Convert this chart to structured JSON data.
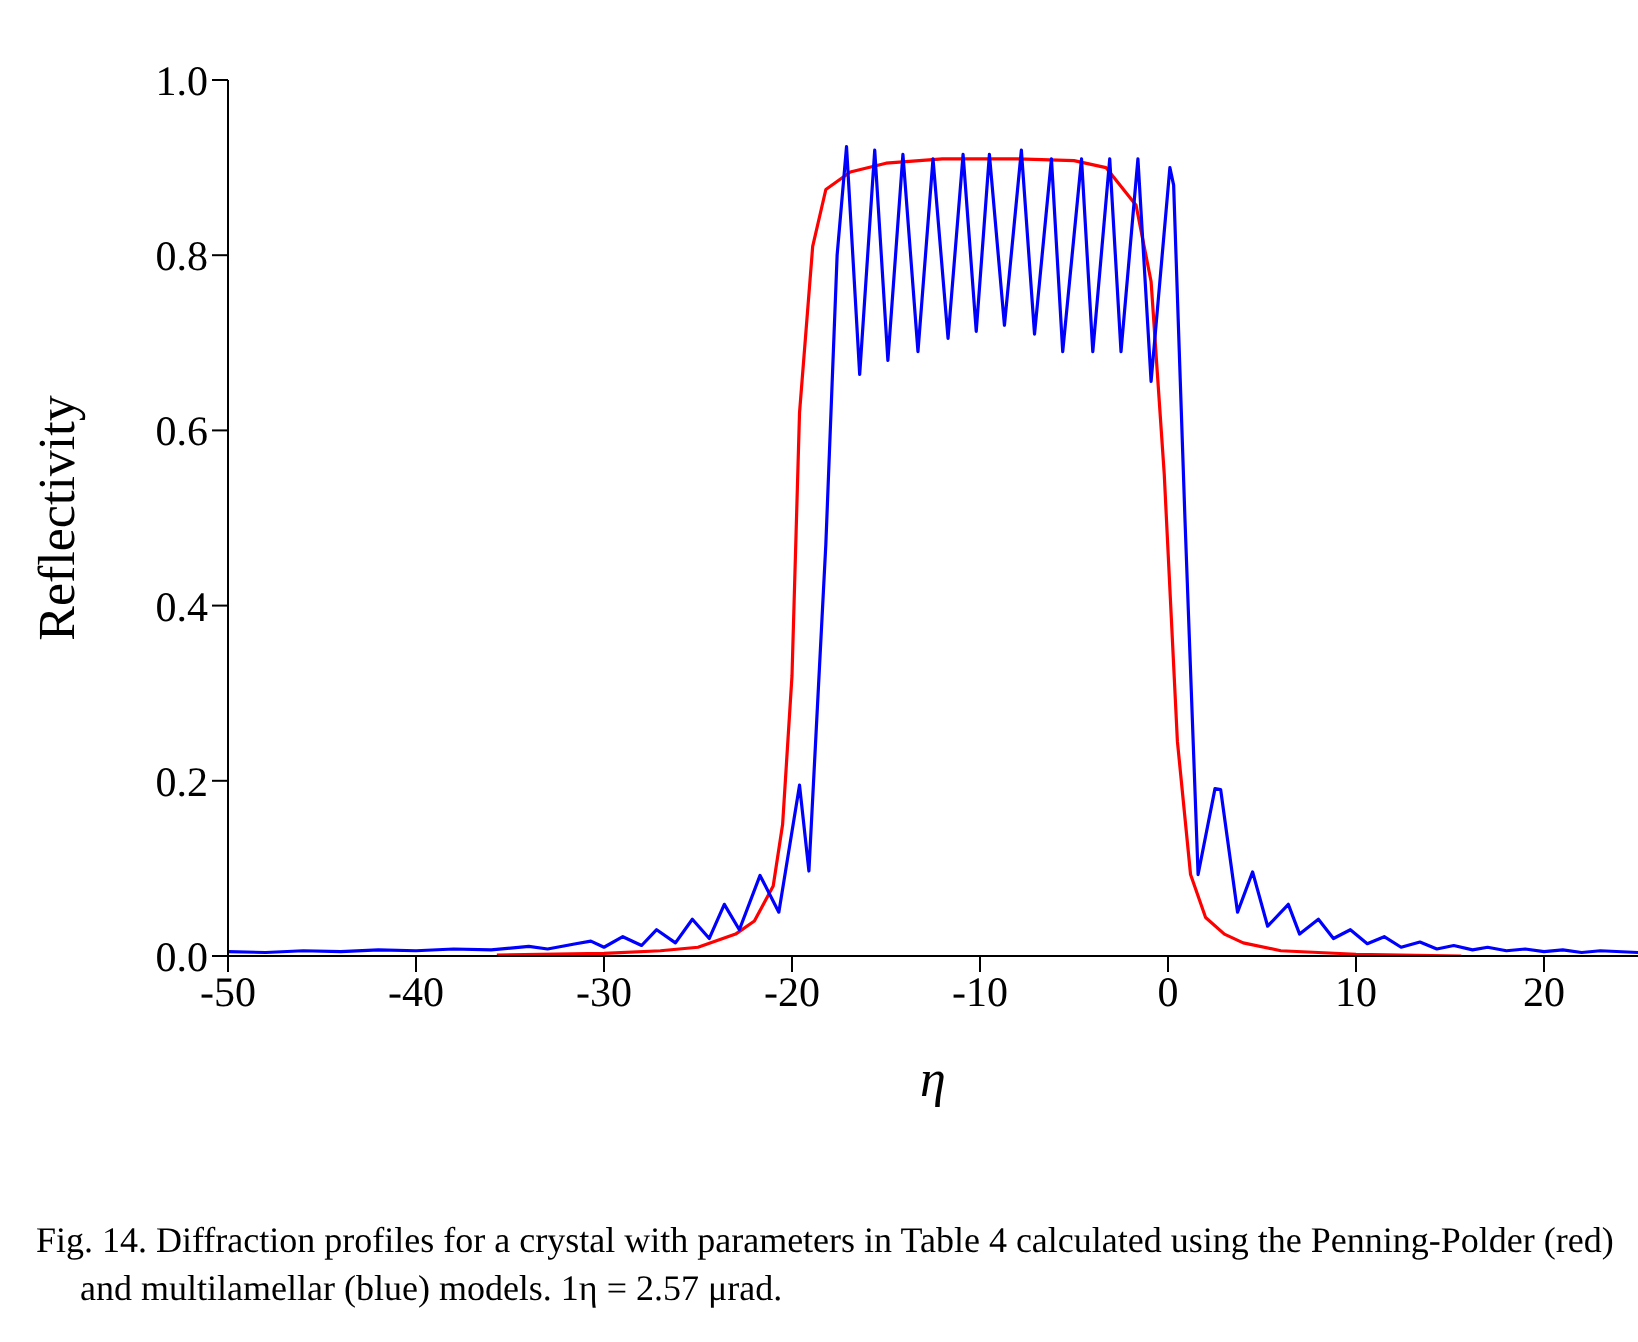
{
  "chart_data": {
    "type": "line",
    "xlabel": "η",
    "ylabel": "Reflectivity",
    "xlim": [
      -50,
      25
    ],
    "xticks": [
      -50,
      -40,
      -30,
      -20,
      -10,
      0,
      10,
      20
    ],
    "ylim": [
      0,
      1
    ],
    "yticks": [
      {
        "value": 0,
        "label": "0.0"
      },
      {
        "value": 0.2,
        "label": "0.2"
      },
      {
        "value": 0.4,
        "label": "0.4"
      },
      {
        "value": 0.6,
        "label": "0.6"
      },
      {
        "value": 0.8,
        "label": "0.8"
      },
      {
        "value": 1,
        "label": "1.0"
      }
    ],
    "grid": false,
    "legend": false,
    "marker": "none",
    "line_style": "solid",
    "annotations": [
      "Fig. 14. Diffraction profiles for a crystal with parameters in Table 4 calculated using the Penning-Polder (red) and multilamellar (blue) models. 1η = 2.57 μrad."
    ],
    "series": [
      {
        "color": "#ff0000",
        "x": [
          -35.7,
          -30,
          -27,
          -25,
          -23,
          -22,
          -21,
          -20.5,
          -20,
          -19.6,
          -18.9,
          -18.2,
          -16.9,
          -15,
          -12,
          -8,
          -5,
          -3.3,
          -1.7,
          -0.9,
          -0.2,
          0.5,
          1.2,
          2,
          3,
          4,
          6,
          10,
          15.6
        ],
        "values": [
          0.001,
          0.003,
          0.006,
          0.01,
          0.025,
          0.04,
          0.08,
          0.15,
          0.32,
          0.62,
          0.81,
          0.875,
          0.895,
          0.905,
          0.91,
          0.91,
          0.908,
          0.9,
          0.857,
          0.77,
          0.55,
          0.245,
          0.093,
          0.044,
          0.025,
          0.015,
          0.006,
          0.002,
          0
        ]
      },
      {
        "color": "#0000ff",
        "x": [
          -50,
          -48,
          -46,
          -44,
          -42,
          -40,
          -38,
          -36,
          -34,
          -33,
          -31.5,
          -30.7,
          -30,
          -29,
          -28,
          -27.2,
          -26.2,
          -25.3,
          -24.4,
          -23.6,
          -22.8,
          -21.7,
          -20.7,
          -19.6,
          -19.1,
          -18.2,
          -17.6,
          -17.1,
          -16.4,
          -15.6,
          -14.9,
          -14.1,
          -13.3,
          -12.5,
          -11.7,
          -10.9,
          -10.2,
          -9.5,
          -8.7,
          -7.8,
          -7.1,
          -6.2,
          -5.6,
          -4.6,
          -4,
          -3.1,
          -2.5,
          -1.6,
          -0.9,
          0.1,
          0.3,
          0.9,
          1.6,
          2.5,
          2.8,
          3.7,
          4.5,
          5.3,
          6.4,
          7,
          8,
          8.8,
          9.7,
          10.6,
          11.5,
          12.4,
          13.4,
          14.3,
          15.2,
          16.2,
          17,
          18,
          19,
          20,
          21,
          22,
          23,
          25
        ],
        "values": [
          0.005,
          0.004,
          0.006,
          0.005,
          0.007,
          0.006,
          0.008,
          0.007,
          0.011,
          0.008,
          0.014,
          0.017,
          0.01,
          0.022,
          0.012,
          0.03,
          0.015,
          0.042,
          0.02,
          0.059,
          0.03,
          0.092,
          0.05,
          0.195,
          0.097,
          0.47,
          0.8,
          0.924,
          0.664,
          0.92,
          0.68,
          0.915,
          0.69,
          0.91,
          0.705,
          0.915,
          0.713,
          0.915,
          0.72,
          0.92,
          0.71,
          0.91,
          0.69,
          0.91,
          0.69,
          0.91,
          0.69,
          0.91,
          0.656,
          0.9,
          0.88,
          0.5,
          0.093,
          0.191,
          0.19,
          0.05,
          0.096,
          0.034,
          0.059,
          0.025,
          0.042,
          0.02,
          0.03,
          0.014,
          0.022,
          0.01,
          0.016,
          0.008,
          0.012,
          0.007,
          0.01,
          0.006,
          0.008,
          0.005,
          0.007,
          0.004,
          0.006,
          0.004
        ]
      }
    ]
  }
}
